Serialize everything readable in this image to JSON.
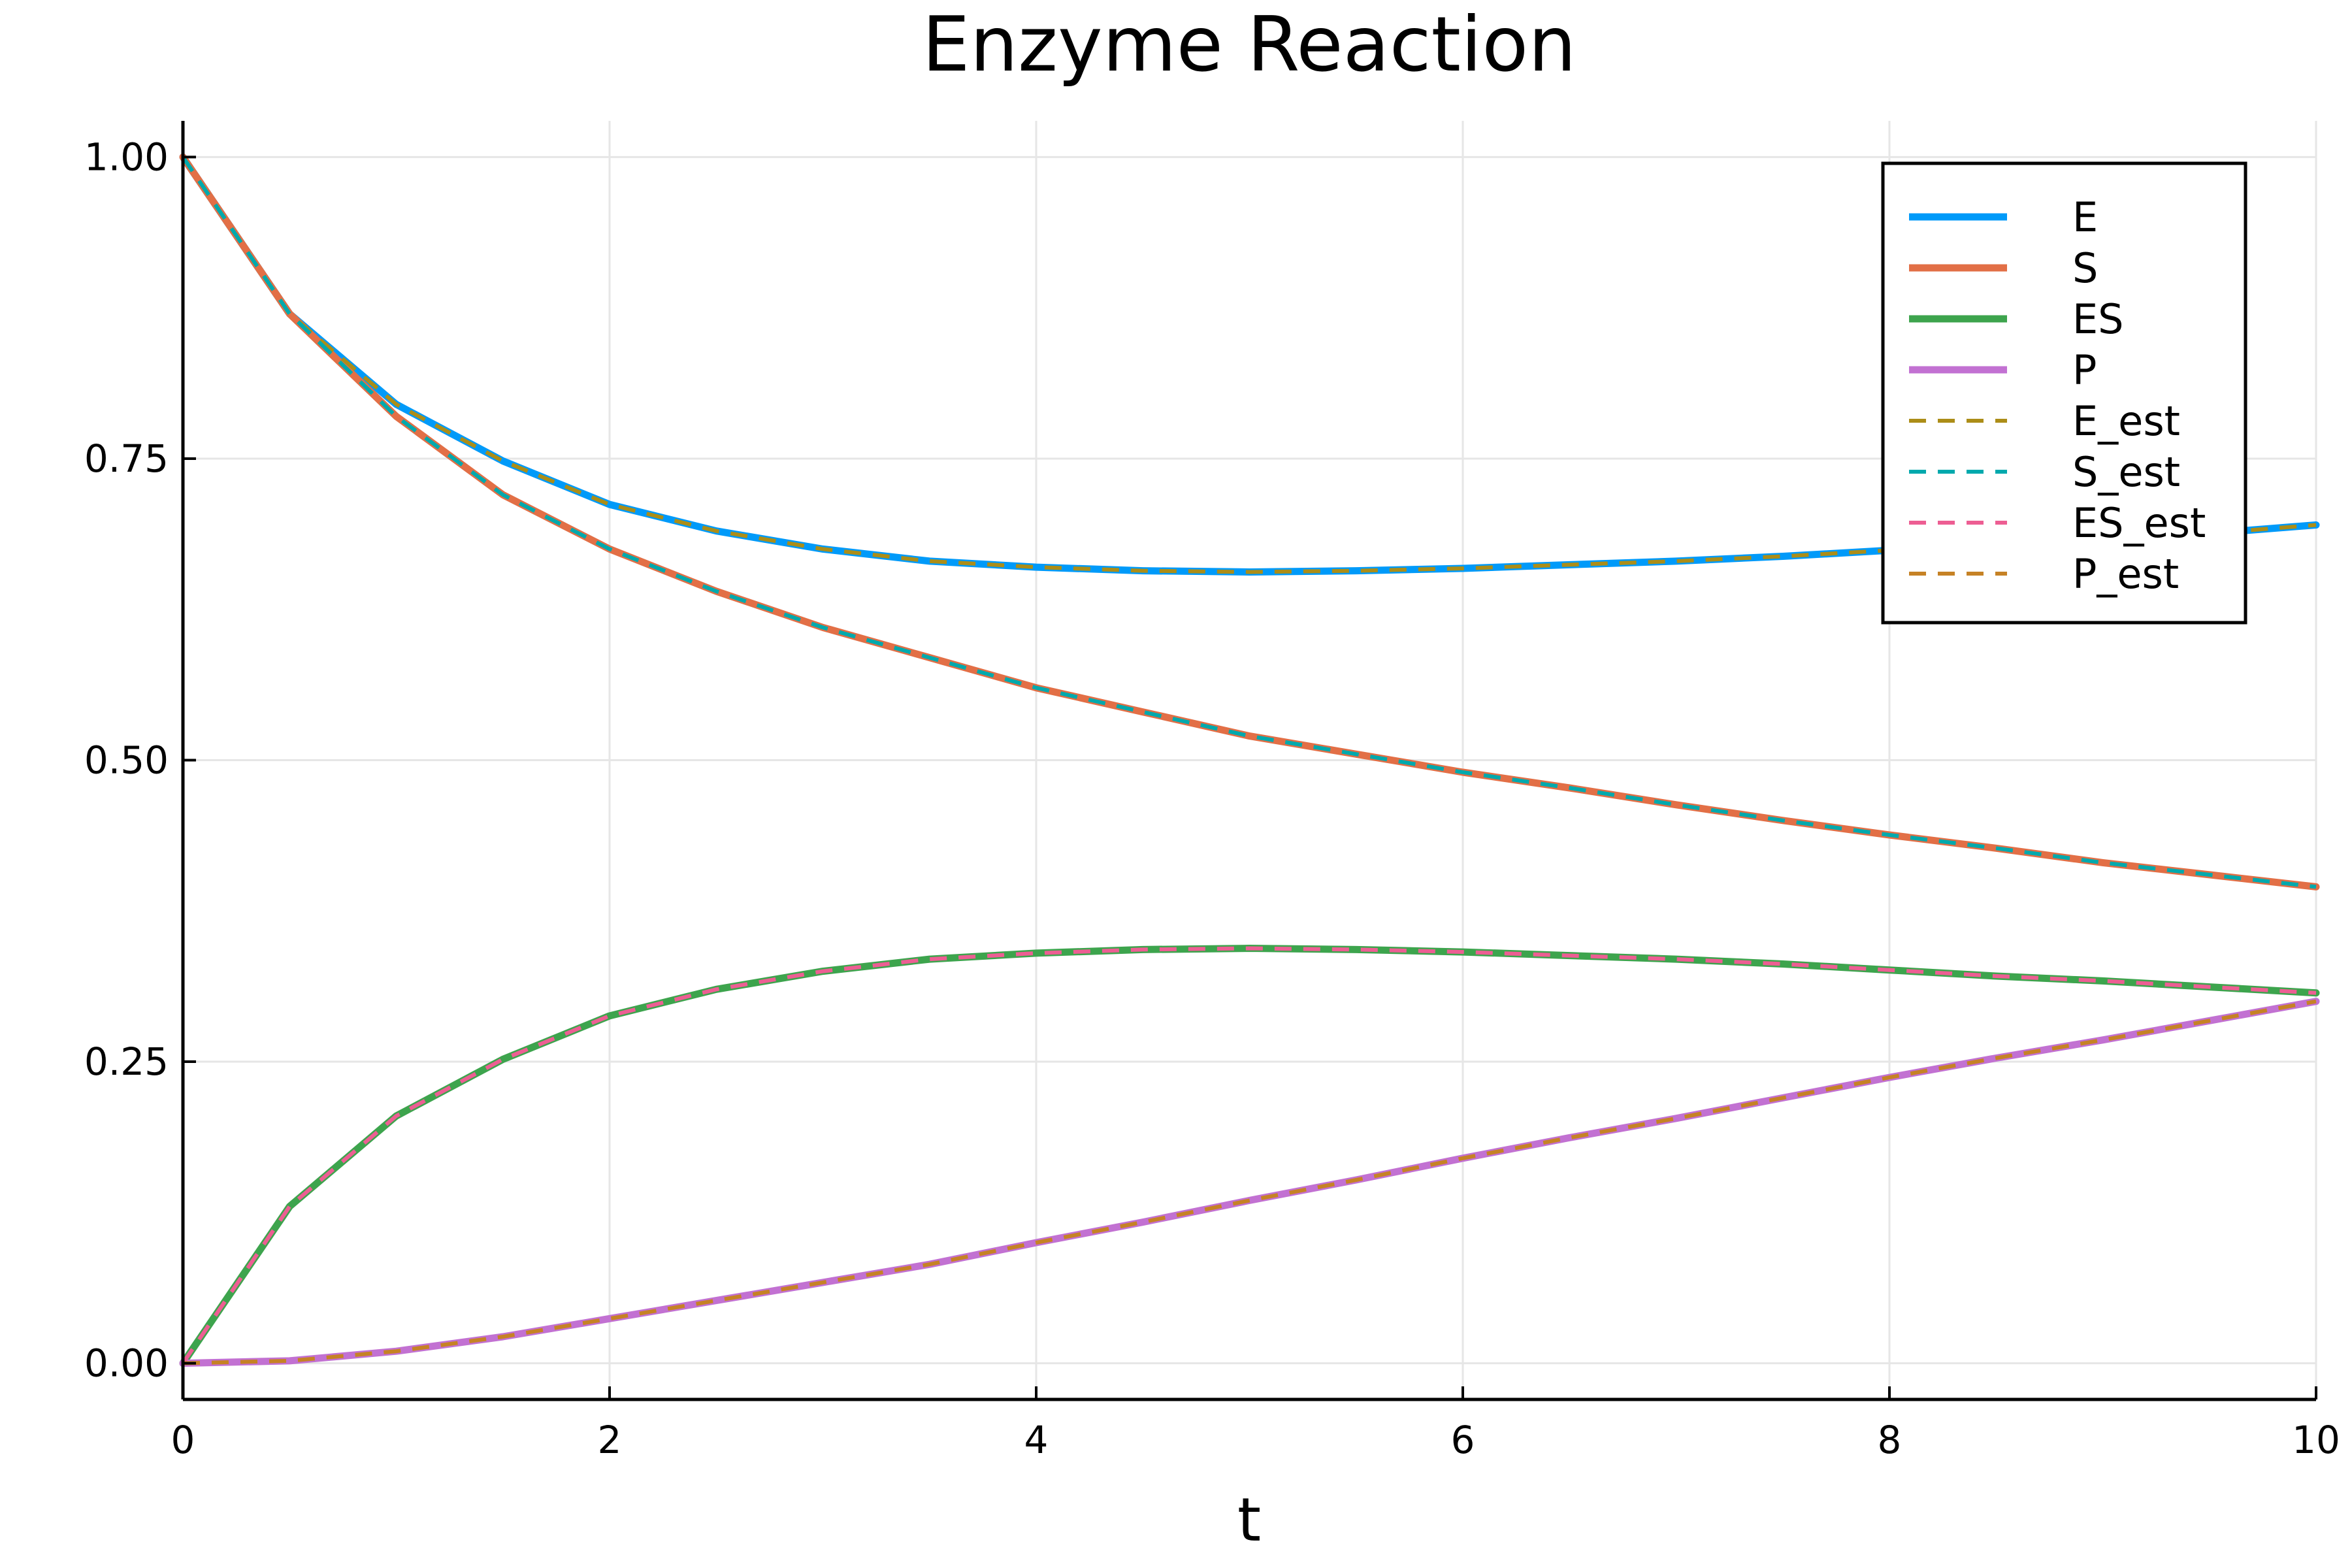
{
  "chart_data": {
    "type": "line",
    "title": "Enzyme Reaction",
    "xlabel": "t",
    "ylabel": "",
    "xlim": [
      0,
      10
    ],
    "ylim": [
      -0.03,
      1.03
    ],
    "x_ticks": [
      "0",
      "2",
      "4",
      "6",
      "8",
      "10"
    ],
    "x_tick_values": [
      0,
      2,
      4,
      6,
      8,
      10
    ],
    "y_ticks": [
      "0.00",
      "0.25",
      "0.50",
      "0.75",
      "1.00"
    ],
    "y_tick_values": [
      0,
      0.25,
      0.5,
      0.75,
      1.0
    ],
    "grid": true,
    "legend_position": "top-right",
    "x": [
      0,
      0.5,
      1,
      1.5,
      2,
      2.5,
      3,
      3.5,
      4,
      4.5,
      5,
      5.5,
      6,
      6.5,
      7,
      7.5,
      8,
      8.5,
      9,
      9.5,
      10
    ],
    "series": [
      {
        "name": "E",
        "style": "solid",
        "color": "#009af9",
        "values": [
          1.0,
          0.87,
          0.795,
          0.748,
          0.712,
          0.69,
          0.675,
          0.665,
          0.66,
          0.657,
          0.656,
          0.657,
          0.659,
          0.662,
          0.665,
          0.669,
          0.674,
          0.678,
          0.683,
          0.688,
          0.695
        ]
      },
      {
        "name": "S",
        "style": "solid",
        "color": "#e26f46",
        "values": [
          1.0,
          0.87,
          0.785,
          0.72,
          0.675,
          0.64,
          0.61,
          0.585,
          0.56,
          0.54,
          0.52,
          0.505,
          0.49,
          0.477,
          0.463,
          0.45,
          0.438,
          0.427,
          0.415,
          0.405,
          0.395
        ]
      },
      {
        "name": "ES",
        "style": "solid",
        "color": "#3da44d",
        "values": [
          0.0,
          0.13,
          0.205,
          0.252,
          0.288,
          0.31,
          0.325,
          0.335,
          0.34,
          0.343,
          0.344,
          0.343,
          0.341,
          0.338,
          0.335,
          0.331,
          0.326,
          0.321,
          0.317,
          0.312,
          0.307
        ]
      },
      {
        "name": "P",
        "style": "solid",
        "color": "#c271d2",
        "values": [
          0.0,
          0.002,
          0.01,
          0.022,
          0.037,
          0.052,
          0.067,
          0.082,
          0.1,
          0.117,
          0.135,
          0.152,
          0.17,
          0.187,
          0.203,
          0.22,
          0.237,
          0.253,
          0.268,
          0.284,
          0.3
        ]
      },
      {
        "name": "E_est",
        "style": "dashed",
        "color": "#ac8d18",
        "values": [
          1.0,
          0.87,
          0.795,
          0.748,
          0.712,
          0.69,
          0.675,
          0.665,
          0.66,
          0.657,
          0.656,
          0.657,
          0.659,
          0.662,
          0.665,
          0.669,
          0.674,
          0.678,
          0.683,
          0.688,
          0.695
        ]
      },
      {
        "name": "S_est",
        "style": "dashed",
        "color": "#00a9ad",
        "values": [
          1.0,
          0.87,
          0.785,
          0.72,
          0.675,
          0.64,
          0.61,
          0.585,
          0.56,
          0.54,
          0.52,
          0.505,
          0.49,
          0.477,
          0.463,
          0.45,
          0.438,
          0.427,
          0.415,
          0.405,
          0.395
        ]
      },
      {
        "name": "ES_est",
        "style": "dashed",
        "color": "#ed5e93",
        "values": [
          0.0,
          0.13,
          0.205,
          0.252,
          0.288,
          0.31,
          0.325,
          0.335,
          0.34,
          0.343,
          0.344,
          0.343,
          0.341,
          0.338,
          0.335,
          0.331,
          0.326,
          0.321,
          0.317,
          0.312,
          0.307
        ]
      },
      {
        "name": "P_est",
        "style": "dashed",
        "color": "#c68225",
        "values": [
          0.0,
          0.002,
          0.01,
          0.022,
          0.037,
          0.052,
          0.067,
          0.082,
          0.1,
          0.117,
          0.135,
          0.152,
          0.17,
          0.187,
          0.203,
          0.22,
          0.237,
          0.253,
          0.268,
          0.284,
          0.3
        ]
      }
    ]
  }
}
